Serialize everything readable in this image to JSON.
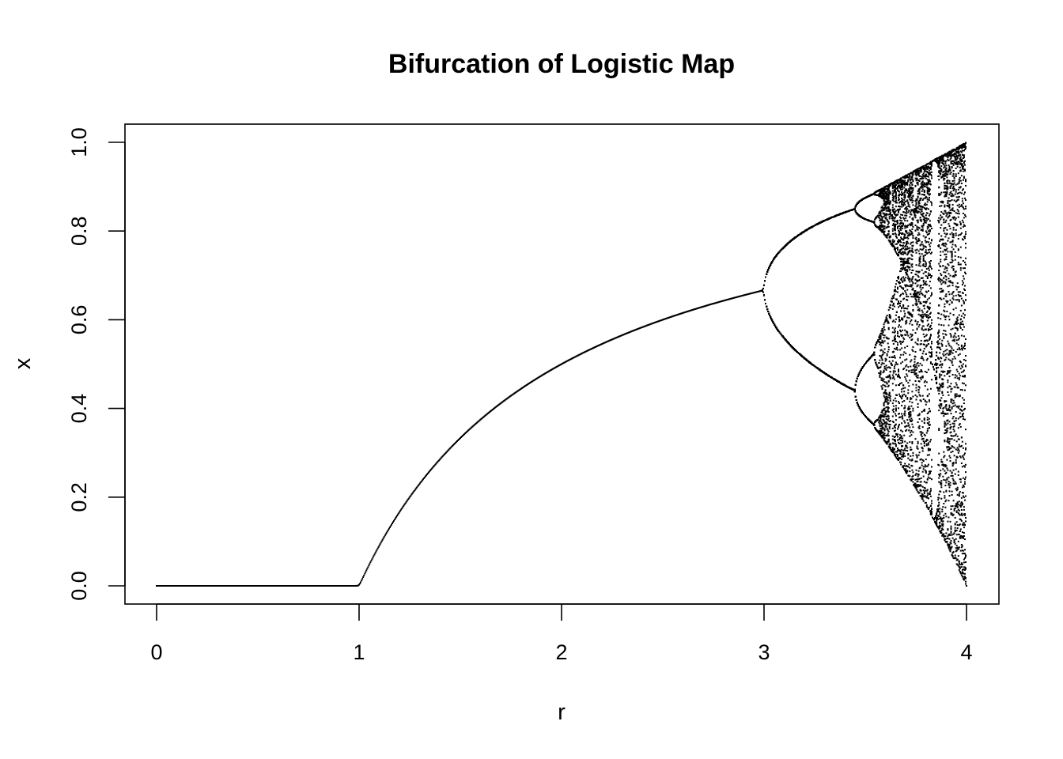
{
  "chart_data": {
    "type": "scatter",
    "title": "Bifurcation of Logistic Map",
    "xlabel": "r",
    "ylabel": "x",
    "xlim": [
      0,
      4
    ],
    "ylim": [
      0,
      1
    ],
    "x_ticks": [
      "0",
      "1",
      "2",
      "3",
      "4"
    ],
    "y_ticks": [
      "0.0",
      "0.2",
      "0.4",
      "0.6",
      "0.8",
      "1.0"
    ],
    "x_tick_values": [
      0,
      1,
      2,
      3,
      4
    ],
    "y_tick_values": [
      0,
      0.2,
      0.4,
      0.6,
      0.8,
      1.0
    ],
    "grid": false,
    "legend": "none",
    "series": [
      {
        "description": "logistic map attractor x_{n+1} = r x_n (1 - x_n), sampled r from 0 to 4",
        "r_range": [
          0,
          4
        ],
        "point_color": "#000000",
        "key_points": [
          {
            "r": 0,
            "x": 0
          },
          {
            "r": 1,
            "x": 0
          },
          {
            "r": 2,
            "x": 0.5
          },
          {
            "r": 3,
            "x": 0.667
          },
          {
            "r": 3.449,
            "x": [
              0.44,
              0.852
            ]
          },
          {
            "r": 3.544,
            "x": [
              0.364,
              0.524,
              0.827,
              0.885
            ]
          },
          {
            "r": 4,
            "x": [
              0,
              1
            ]
          }
        ]
      }
    ]
  }
}
